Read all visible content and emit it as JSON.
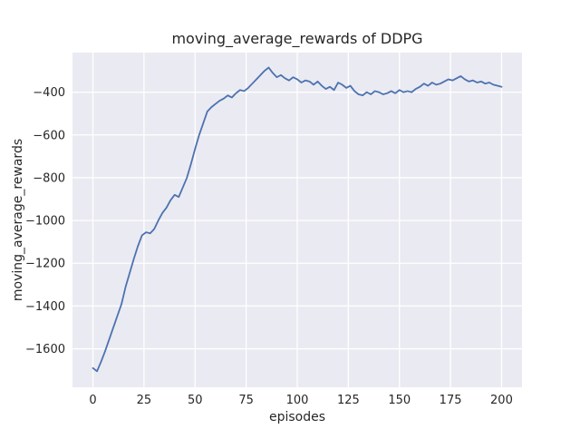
{
  "chart_data": {
    "type": "line",
    "title": "moving_average_rewards of DDPG",
    "xlabel": "episodes",
    "ylabel": "moving_average_rewards",
    "x": [
      0,
      2,
      4,
      6,
      8,
      10,
      12,
      14,
      16,
      18,
      20,
      22,
      24,
      26,
      28,
      30,
      32,
      34,
      36,
      38,
      40,
      42,
      44,
      46,
      48,
      50,
      52,
      54,
      56,
      58,
      60,
      62,
      64,
      66,
      68,
      70,
      72,
      74,
      76,
      78,
      80,
      82,
      84,
      86,
      88,
      90,
      92,
      94,
      96,
      98,
      100,
      102,
      104,
      106,
      108,
      110,
      112,
      114,
      116,
      118,
      120,
      122,
      124,
      126,
      128,
      130,
      132,
      134,
      136,
      138,
      140,
      142,
      144,
      146,
      148,
      150,
      152,
      154,
      156,
      158,
      160,
      162,
      164,
      166,
      168,
      170,
      172,
      174,
      176,
      178,
      180,
      182,
      184,
      186,
      188,
      190,
      192,
      194,
      196,
      198,
      200
    ],
    "y": [
      -1690,
      -1705,
      -1660,
      -1610,
      -1555,
      -1500,
      -1445,
      -1390,
      -1310,
      -1245,
      -1180,
      -1120,
      -1070,
      -1055,
      -1060,
      -1040,
      -1000,
      -965,
      -940,
      -905,
      -880,
      -890,
      -845,
      -800,
      -735,
      -665,
      -600,
      -545,
      -490,
      -470,
      -455,
      -440,
      -430,
      -415,
      -425,
      -405,
      -390,
      -395,
      -380,
      -360,
      -340,
      -320,
      -300,
      -285,
      -310,
      -330,
      -320,
      -335,
      -345,
      -330,
      -340,
      -355,
      -345,
      -350,
      -365,
      -350,
      -370,
      -385,
      -375,
      -390,
      -355,
      -365,
      -380,
      -370,
      -395,
      -410,
      -415,
      -400,
      -410,
      -395,
      -400,
      -410,
      -405,
      -395,
      -405,
      -390,
      -400,
      -395,
      -400,
      -385,
      -375,
      -360,
      -370,
      -355,
      -365,
      -360,
      -350,
      -340,
      -345,
      -335,
      -325,
      -340,
      -350,
      -345,
      -355,
      -350,
      -360,
      -355,
      -365,
      -370,
      -375
    ],
    "xlim": [
      -10,
      210
    ],
    "ylim": [
      -1780,
      -215
    ],
    "xticks": [
      0,
      25,
      50,
      75,
      100,
      125,
      150,
      175,
      200
    ],
    "yticks": [
      -400,
      -600,
      -800,
      -1000,
      -1200,
      -1400,
      -1600
    ],
    "grid": true,
    "legend": null,
    "line_color": "#4C72B0",
    "plot_bg": "#EAEAF2",
    "fig_bg": "#FFFFFF",
    "grid_color": "#FFFFFF",
    "text_color": "#262626"
  }
}
